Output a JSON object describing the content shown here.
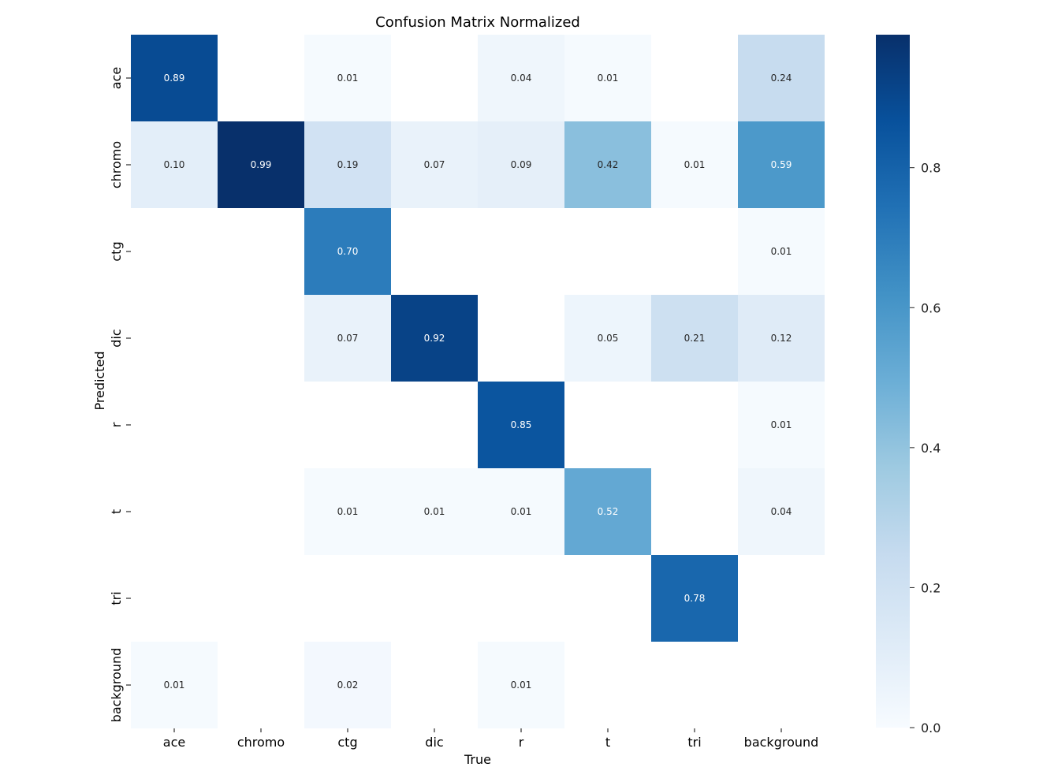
{
  "chart_data": {
    "type": "heatmap",
    "title": "Confusion Matrix Normalized",
    "xlabel": "True",
    "ylabel": "Predicted",
    "x_categories": [
      "ace",
      "chromo",
      "ctg",
      "dic",
      "r",
      "t",
      "tri",
      "background"
    ],
    "y_categories": [
      "ace",
      "chromo",
      "ctg",
      "dic",
      "r",
      "t",
      "tri",
      "background"
    ],
    "values": [
      [
        0.89,
        null,
        0.01,
        null,
        0.04,
        0.01,
        null,
        0.24
      ],
      [
        0.1,
        0.99,
        0.19,
        0.07,
        0.09,
        0.42,
        0.01,
        0.59
      ],
      [
        null,
        null,
        0.7,
        null,
        null,
        null,
        null,
        0.01
      ],
      [
        null,
        null,
        0.07,
        0.92,
        null,
        0.05,
        0.21,
        0.12
      ],
      [
        null,
        null,
        null,
        null,
        0.85,
        null,
        null,
        0.01
      ],
      [
        null,
        null,
        0.01,
        0.01,
        0.01,
        0.52,
        null,
        0.04
      ],
      [
        null,
        null,
        null,
        null,
        null,
        null,
        0.78,
        null
      ],
      [
        0.01,
        null,
        0.02,
        null,
        0.01,
        null,
        null,
        null
      ]
    ],
    "value_format": "0.00",
    "colormap": "Blues",
    "colorbar": {
      "range": [
        0.0,
        0.99
      ],
      "ticks": [
        0.0,
        0.2,
        0.4,
        0.6,
        0.8
      ],
      "tick_labels": [
        "0.0",
        "0.2",
        "0.4",
        "0.6",
        "0.8"
      ]
    },
    "colors": {
      "low": "#f7fbff",
      "high": "#08306b",
      "text_dark": "#262626",
      "text_light": "#ffffff"
    },
    "grid": false
  }
}
